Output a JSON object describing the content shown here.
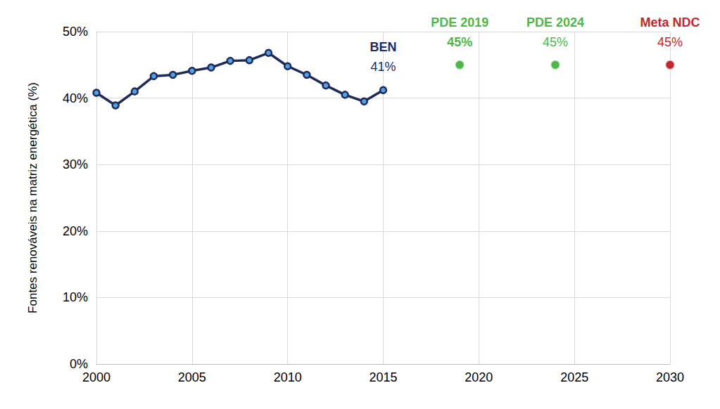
{
  "chart_data": {
    "type": "line",
    "ylabel": "Fontes renováveis na matriz energética (%)",
    "xlim": [
      2000,
      2030
    ],
    "xticks": [
      2000,
      2005,
      2010,
      2015,
      2020,
      2025,
      2030
    ],
    "ylim": [
      0,
      50
    ],
    "yticks": [
      {
        "value": 0,
        "label": "0%"
      },
      {
        "value": 10,
        "label": "10%"
      },
      {
        "value": 20,
        "label": "20%"
      },
      {
        "value": 30,
        "label": "30%"
      },
      {
        "value": 40,
        "label": "40%"
      },
      {
        "value": 50,
        "label": "50%"
      }
    ],
    "grid": true,
    "series": [
      {
        "name": "BEN",
        "type": "line",
        "color": "#1f2a5c",
        "marker": "circle",
        "line_style": "solid",
        "x": [
          2000,
          2001,
          2002,
          2003,
          2004,
          2005,
          2006,
          2007,
          2008,
          2009,
          2010,
          2011,
          2012,
          2013,
          2014,
          2015
        ],
        "values": [
          40.8,
          38.9,
          41.0,
          43.3,
          43.5,
          44.1,
          44.6,
          45.6,
          45.7,
          46.8,
          44.8,
          43.5,
          41.9,
          40.5,
          39.5,
          41.2
        ],
        "value_labels": [
          null,
          null,
          null,
          null,
          null,
          null,
          null,
          null,
          null,
          null,
          null,
          null,
          null,
          null,
          null,
          "41%"
        ]
      },
      {
        "name": "PDE 2019",
        "type": "scatter",
        "color": "#4cb848",
        "marker": "circle",
        "x": [
          2019
        ],
        "values": [
          45
        ],
        "value_labels": [
          "45%"
        ]
      },
      {
        "name": "PDE 2024",
        "type": "scatter",
        "color": "#4cb848",
        "marker": "circle",
        "x": [
          2024
        ],
        "values": [
          45
        ],
        "value_labels": [
          "45%"
        ]
      },
      {
        "name": "Meta NDC",
        "type": "scatter",
        "color": "#c0282d",
        "marker": "circle",
        "x": [
          2030
        ],
        "values": [
          45
        ],
        "value_labels": [
          "45%"
        ]
      }
    ]
  }
}
